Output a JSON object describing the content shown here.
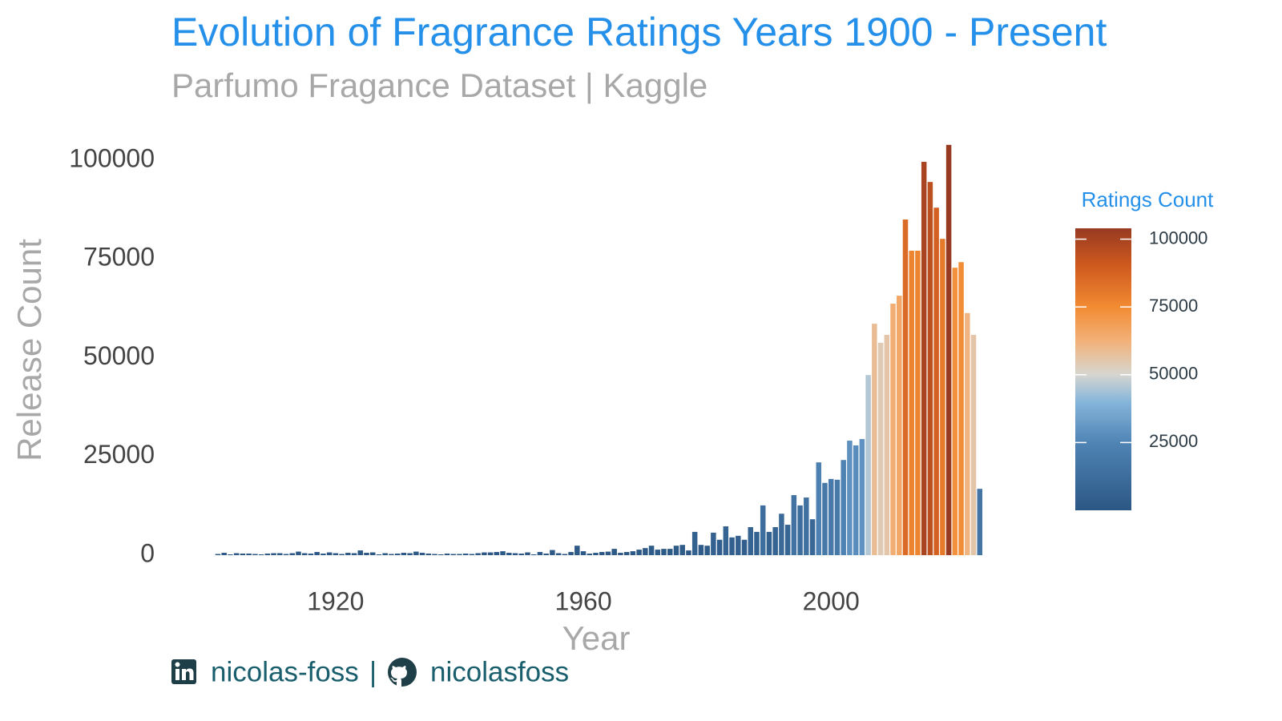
{
  "chart_data": {
    "type": "bar",
    "title": "Evolution of Fragrance Ratings Years 1900 - Present",
    "subtitle": "Parfumo Fragance Dataset | Kaggle",
    "xlabel": "Year",
    "ylabel": "Release Count",
    "x": [
      1901,
      1902,
      1903,
      1904,
      1905,
      1906,
      1907,
      1908,
      1909,
      1910,
      1911,
      1912,
      1913,
      1914,
      1915,
      1916,
      1917,
      1918,
      1919,
      1920,
      1921,
      1922,
      1923,
      1924,
      1925,
      1926,
      1927,
      1928,
      1929,
      1930,
      1931,
      1932,
      1933,
      1934,
      1935,
      1936,
      1937,
      1938,
      1939,
      1940,
      1941,
      1942,
      1943,
      1944,
      1945,
      1946,
      1947,
      1948,
      1949,
      1950,
      1951,
      1952,
      1953,
      1954,
      1955,
      1956,
      1957,
      1958,
      1959,
      1960,
      1961,
      1962,
      1963,
      1964,
      1965,
      1966,
      1967,
      1968,
      1969,
      1970,
      1971,
      1972,
      1973,
      1974,
      1975,
      1976,
      1977,
      1978,
      1979,
      1980,
      1981,
      1982,
      1983,
      1984,
      1985,
      1986,
      1987,
      1988,
      1989,
      1990,
      1991,
      1992,
      1993,
      1994,
      1995,
      1996,
      1997,
      1998,
      1999,
      2000,
      2001,
      2002,
      2003,
      2004,
      2005,
      2006,
      2007,
      2008,
      2009,
      2010,
      2011,
      2012,
      2013,
      2014,
      2015,
      2016,
      2017,
      2018,
      2019,
      2020,
      2021,
      2022,
      2023,
      2024
    ],
    "values": [
      300,
      600,
      200,
      500,
      400,
      400,
      300,
      200,
      400,
      500,
      500,
      300,
      500,
      900,
      500,
      400,
      800,
      400,
      700,
      500,
      300,
      600,
      500,
      1200,
      600,
      700,
      200,
      500,
      300,
      400,
      600,
      500,
      900,
      600,
      400,
      300,
      200,
      400,
      300,
      300,
      400,
      300,
      500,
      700,
      700,
      800,
      1000,
      600,
      500,
      400,
      700,
      200,
      800,
      400,
      1300,
      500,
      300,
      800,
      2400,
      1000,
      400,
      600,
      800,
      900,
      1600,
      600,
      800,
      1000,
      1400,
      1800,
      2400,
      1400,
      1600,
      1600,
      2400,
      2600,
      1200,
      5900,
      2600,
      2400,
      5700,
      3900,
      7300,
      4500,
      4900,
      3900,
      7100,
      5900,
      12600,
      5900,
      7100,
      10500,
      7700,
      15200,
      12600,
      14600,
      9100,
      23500,
      18300,
      19300,
      19100,
      24100,
      29000,
      27800,
      29400,
      45600,
      58600,
      53800,
      55800,
      63700,
      65700,
      85000,
      77100,
      77100,
      99600,
      94500,
      88000,
      80100,
      103900,
      72800,
      74200,
      61300,
      55800,
      16800
    ],
    "xlim": [
      1893.5,
      2032.7
    ],
    "xticks": [
      1920,
      1960,
      2000
    ],
    "ylim": [
      0,
      105000
    ],
    "yticks": [
      0,
      25000,
      50000,
      75000,
      100000
    ],
    "color_scale": {
      "title": "Ratings Count",
      "lim": [
        0,
        104000
      ],
      "ticks": [
        25000,
        50000,
        75000,
        100000
      ],
      "stops": [
        [
          0,
          "#2c5784"
        ],
        [
          25000,
          "#4f84b5"
        ],
        [
          40000,
          "#86b5da"
        ],
        [
          50000,
          "#d6d6d0"
        ],
        [
          62000,
          "#f2b27c"
        ],
        [
          75000,
          "#f28b32"
        ],
        [
          90000,
          "#cf5a1e"
        ],
        [
          104000,
          "#983a22"
        ]
      ]
    },
    "footer": {
      "linkedin": "nicolas-foss",
      "separator": "|",
      "github": "nicolasfoss"
    }
  }
}
